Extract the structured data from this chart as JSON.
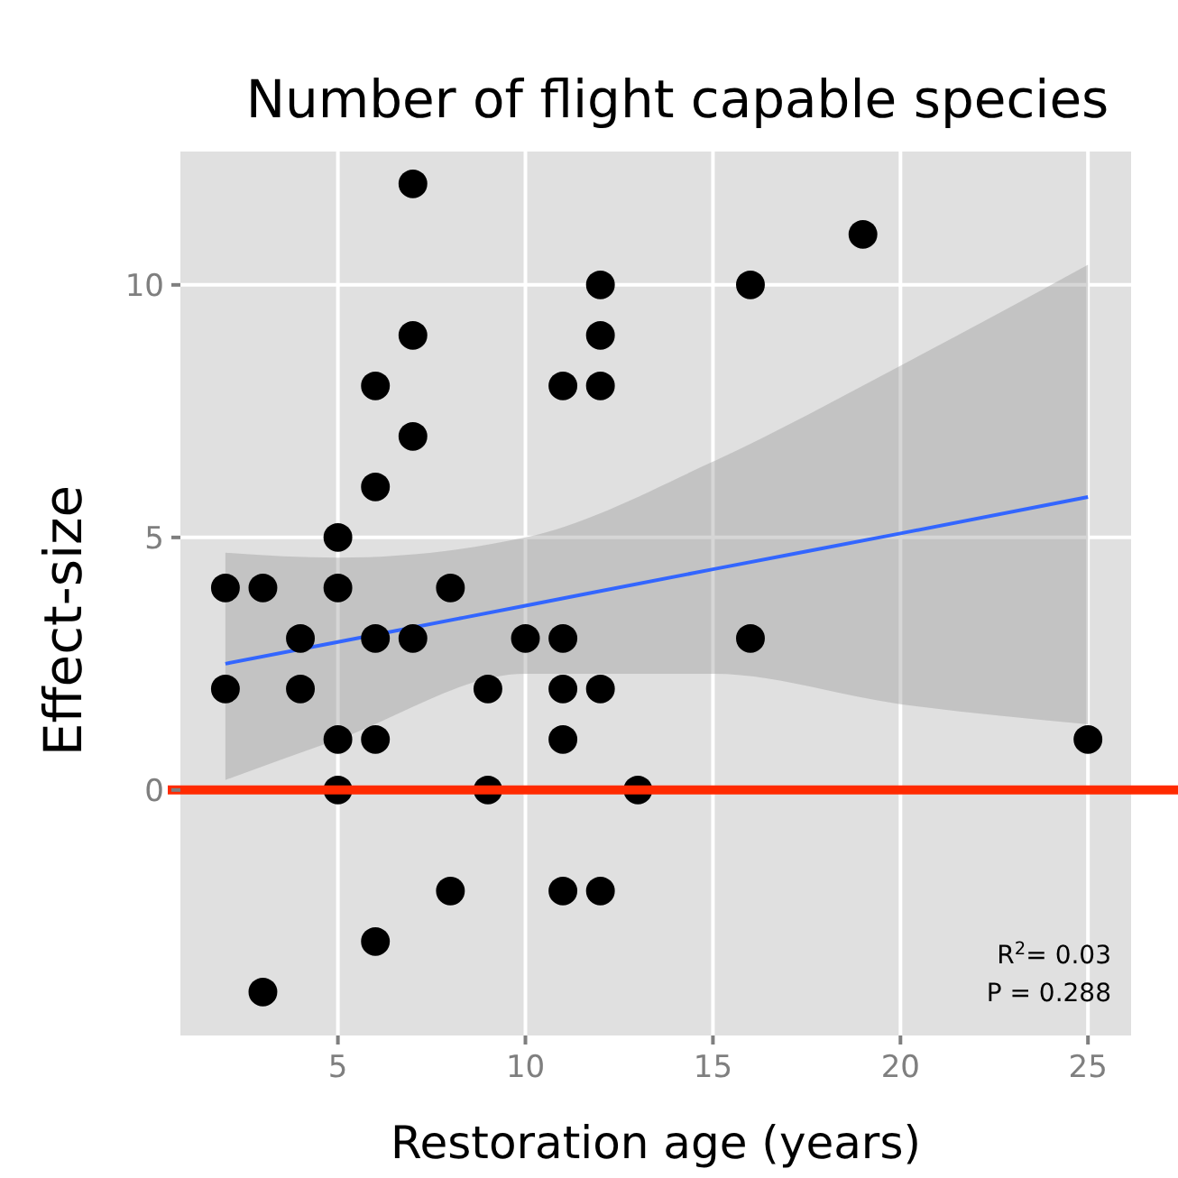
{
  "chart_data": {
    "type": "scatter",
    "title": "Number of flight capable species",
    "xlabel": "Restoration age (years)",
    "ylabel": "Effect-size",
    "xlim": [
      0.8,
      26.15
    ],
    "ylim": [
      -4.86,
      12.64
    ],
    "xticks": [
      5,
      10,
      15,
      20,
      25
    ],
    "yticks": [
      0,
      5,
      10
    ],
    "grid": true,
    "series": [
      {
        "marker": "circle",
        "color": "#000000",
        "x": [
          2,
          2,
          3,
          3,
          4,
          4,
          5,
          5,
          5,
          5,
          6,
          6,
          6,
          6,
          6,
          7,
          7,
          7,
          7,
          8,
          8,
          9,
          9,
          10,
          11,
          11,
          11,
          11,
          11,
          12,
          12,
          12,
          12,
          12,
          13,
          16,
          16,
          19,
          25
        ],
        "values": [
          4,
          2,
          4,
          -4,
          3,
          2,
          5,
          4,
          1,
          0,
          8,
          6,
          3,
          1,
          -3,
          12,
          9,
          7,
          3,
          4,
          -2,
          2,
          0,
          3,
          8,
          3,
          2,
          1,
          -2,
          10,
          9,
          8,
          2,
          -2,
          0,
          10,
          3,
          11,
          1
        ]
      },
      {
        "type": "line",
        "color": "#3366ff",
        "x": [
          2,
          5,
          10,
          15,
          20,
          25
        ],
        "values": [
          2.5,
          2.93,
          3.65,
          4.37,
          5.08,
          5.8
        ],
        "lower": [
          0.2,
          1.0,
          2.3,
          2.3,
          1.7,
          1.3
        ],
        "upper": [
          4.7,
          4.6,
          5.0,
          6.5,
          8.4,
          10.4
        ]
      }
    ],
    "ref_lines": [
      {
        "axis": "y",
        "value": 0,
        "color": "#ff2a00"
      }
    ],
    "annotations": [
      "R$^{2}$= 0.03",
      "P = 0.288"
    ]
  }
}
